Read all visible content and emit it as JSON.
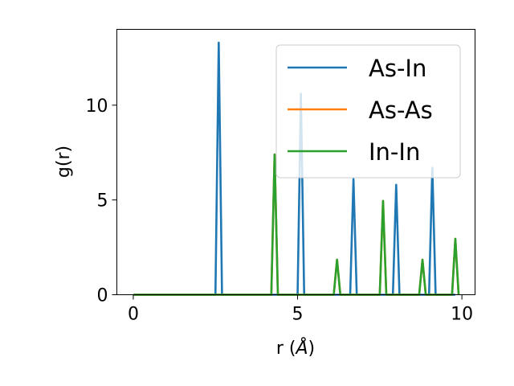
{
  "chart_data": {
    "type": "line",
    "xlabel_prefix": "r (",
    "xlabel_unit": "Å",
    "xlabel_suffix": ")",
    "ylabel": "g(r)",
    "xlim": [
      -0.5,
      10.4
    ],
    "ylim": [
      0,
      14
    ],
    "xticks": [
      0,
      5,
      10
    ],
    "yticks": [
      0,
      5,
      10
    ],
    "grid": false,
    "legend_position": "top-right",
    "series": [
      {
        "name": "As-In",
        "color": "#1f77b4",
        "x": [
          0,
          2.5,
          2.6,
          2.7,
          5.0,
          5.1,
          5.2,
          6.6,
          6.7,
          6.8,
          7.9,
          8.0,
          8.1,
          9.0,
          9.1,
          9.2,
          9.8
        ],
        "y": [
          0,
          0,
          13.3,
          0,
          0,
          10.6,
          0,
          0,
          6.1,
          0,
          0,
          5.8,
          0,
          0,
          6.7,
          0,
          0
        ]
      },
      {
        "name": "As-As",
        "color": "#ff7f0e",
        "x": [
          0,
          4.2,
          4.3,
          4.4,
          6.1,
          6.2,
          6.3,
          7.5,
          7.6,
          7.7,
          8.7,
          8.8,
          8.9,
          9.7,
          9.8,
          9.9
        ],
        "y": [
          0,
          0,
          7.4,
          0,
          0,
          1.85,
          0,
          0,
          4.95,
          0,
          0,
          1.85,
          0,
          0,
          2.95,
          0
        ]
      },
      {
        "name": "In-In",
        "color": "#2ca02c",
        "x": [
          0,
          4.2,
          4.3,
          4.4,
          6.1,
          6.2,
          6.3,
          7.5,
          7.6,
          7.7,
          8.7,
          8.8,
          8.9,
          9.7,
          9.8,
          9.9
        ],
        "y": [
          0,
          0,
          7.4,
          0,
          0,
          1.85,
          0,
          0,
          4.95,
          0,
          0,
          1.85,
          0,
          0,
          2.95,
          0
        ]
      }
    ]
  }
}
